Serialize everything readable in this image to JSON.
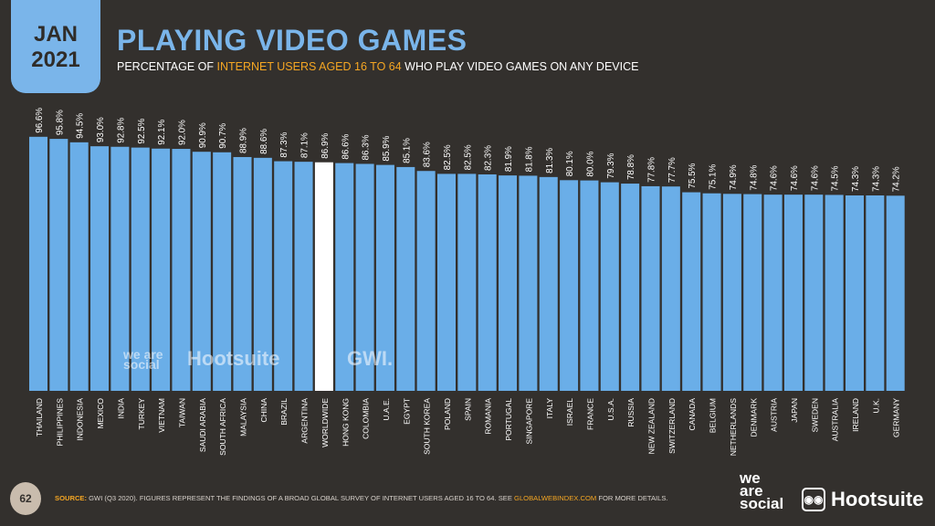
{
  "header": {
    "month": "JAN",
    "year": "2021",
    "title": "PLAYING VIDEO GAMES",
    "subtitle_pre": "PERCENTAGE OF ",
    "subtitle_highlight": "INTERNET USERS AGED 16 TO 64",
    "subtitle_post": " WHO PLAY VIDEO GAMES ON ANY DEVICE"
  },
  "watermarks": {
    "was": "we are social",
    "hootsuite": "Hootsuite",
    "gwi": "GWI."
  },
  "footer": {
    "page_number": "62",
    "source_label": "SOURCE:",
    "source_text": " GWI (Q3 2020). FIGURES REPRESENT THE FINDINGS OF A BROAD GLOBAL SURVEY OF INTERNET USERS AGED 16 TO 64. SEE ",
    "source_link": "GLOBALWEBINDEX.COM",
    "source_end": " FOR MORE DETAILS.",
    "logo_was_1": "we",
    "logo_was_2": "are",
    "logo_was_3": "social",
    "logo_hootsuite": "Hootsuite"
  },
  "colors": {
    "bar": "#6aaee8",
    "highlight": "#ffffff",
    "background": "#33302d",
    "accent": "#f5a623"
  },
  "chart_data": {
    "type": "bar",
    "title": "PLAYING VIDEO GAMES",
    "ylabel": "Percentage of internet users aged 16 to 64",
    "ylim": [
      0,
      100
    ],
    "highlight": "WORLDWIDE",
    "categories": [
      "THAILAND",
      "PHILIPPINES",
      "INDONESIA",
      "MEXICO",
      "INDIA",
      "TURKEY",
      "VIETNAM",
      "TAIWAN",
      "SAUDI ARABIA",
      "SOUTH AFRICA",
      "MALAYSIA",
      "CHINA",
      "BRAZIL",
      "ARGENTINA",
      "WORLDWIDE",
      "HONG KONG",
      "COLOMBIA",
      "U.A.E.",
      "EGYPT",
      "SOUTH KOREA",
      "POLAND",
      "SPAIN",
      "ROMANIA",
      "PORTUGAL",
      "SINGAPORE",
      "ITALY",
      "ISRAEL",
      "FRANCE",
      "U.S.A.",
      "RUSSIA",
      "NEW ZEALAND",
      "SWITZERLAND",
      "CANADA",
      "BELGIUM",
      "NETHERLANDS",
      "DENMARK",
      "AUSTRIA",
      "JAPAN",
      "SWEDEN",
      "AUSTRALIA",
      "IRELAND",
      "U.K.",
      "GERMANY"
    ],
    "values": [
      96.6,
      95.8,
      94.5,
      93.0,
      92.8,
      92.5,
      92.1,
      92.0,
      90.9,
      90.7,
      88.9,
      88.6,
      87.3,
      87.1,
      86.9,
      86.6,
      86.3,
      85.9,
      85.1,
      83.6,
      82.5,
      82.5,
      82.3,
      81.9,
      81.8,
      81.3,
      80.1,
      80.0,
      79.3,
      78.8,
      77.8,
      77.7,
      75.5,
      75.1,
      74.9,
      74.8,
      74.6,
      74.6,
      74.6,
      74.5,
      74.3,
      74.3,
      74.2
    ],
    "value_suffix": "%"
  }
}
